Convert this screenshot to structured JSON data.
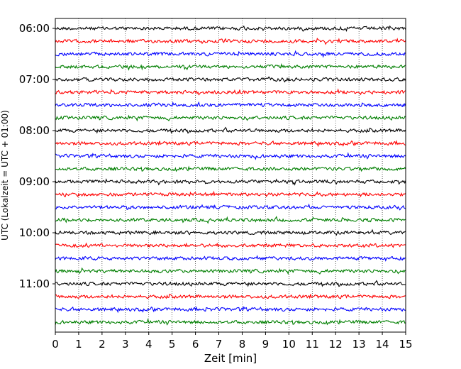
{
  "chart_data": {
    "type": "line",
    "title": "",
    "xlabel": "Zeit  [min]",
    "ylabel": "UTC (Lokalzeit = UTC + 01:00)",
    "xlim": [
      0,
      15
    ],
    "x_ticks": [
      0,
      1,
      2,
      3,
      4,
      5,
      6,
      7,
      8,
      9,
      10,
      11,
      12,
      13,
      14,
      15
    ],
    "grid": "vertical dotted lines at each minute",
    "hour_tick_labels": [
      "06:00",
      "07:00",
      "08:00",
      "09:00",
      "10:00",
      "11:00"
    ],
    "trace_start_times": [
      "06:00",
      "06:15",
      "06:30",
      "06:45",
      "07:00",
      "07:15",
      "07:30",
      "07:45",
      "08:00",
      "08:15",
      "08:30",
      "08:45",
      "09:00",
      "09:15",
      "09:30",
      "09:45",
      "10:00",
      "10:15",
      "10:30",
      "10:45",
      "11:00",
      "11:15",
      "11:30",
      "11:45"
    ],
    "trace_minutes_per_line": 15,
    "trace_color_cycle": [
      "#000000",
      "#ff0000",
      "#0000ff",
      "#007f00"
    ],
    "trace_description_colors": [
      "black",
      "red",
      "blue",
      "green"
    ]
  }
}
